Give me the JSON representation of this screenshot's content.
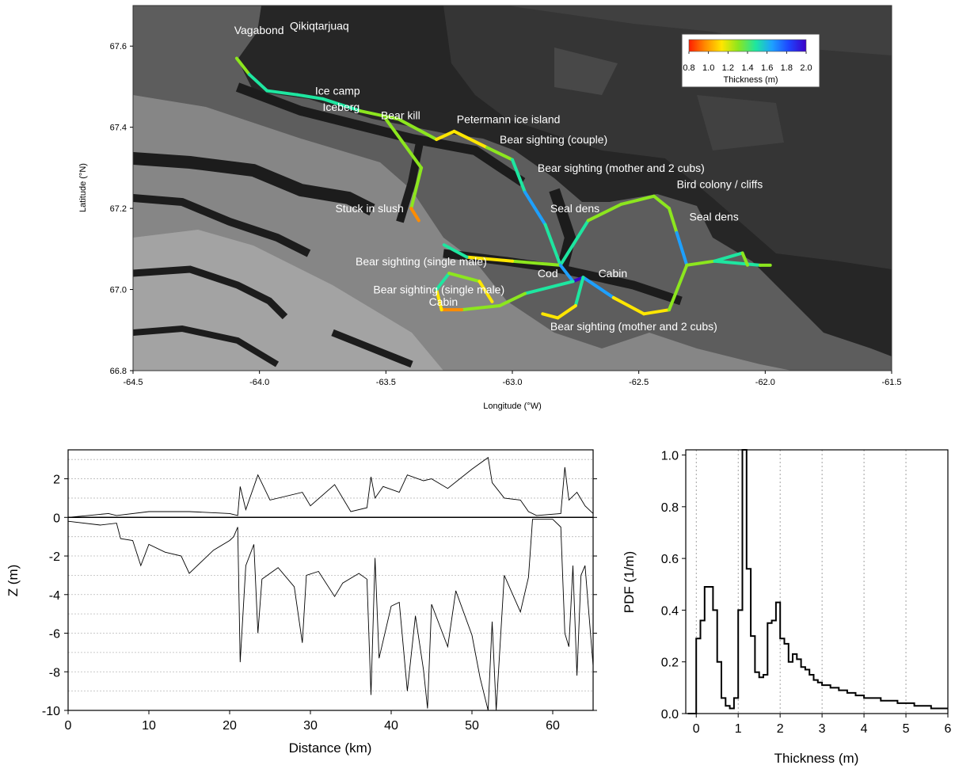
{
  "chart_data": [
    {
      "type": "scatter",
      "xlabel": "Longitude (°W)",
      "ylabel": "Latitude (°N)",
      "xlim": [
        -64.5,
        -61.5
      ],
      "ylim": [
        66.8,
        67.7
      ],
      "x_ticks": [
        "-64.5",
        "-64.0",
        "-63.5",
        "-63.0",
        "-62.5",
        "-62.0",
        "-61.5"
      ],
      "y_ticks": [
        "66.8",
        "67.0",
        "67.2",
        "67.4",
        "67.6"
      ],
      "background": "grayscale satellite radar image of coastline and sea ice",
      "colorbar": {
        "label": "Thickness (m)",
        "ticks": [
          "0.8",
          "1.0",
          "1.2",
          "1.4",
          "1.6",
          "1.8",
          "2.0"
        ],
        "range": [
          0.8,
          2.0
        ],
        "colors": [
          "#ff1e00",
          "#ff8c00",
          "#ffe600",
          "#8ce61e",
          "#1ee6a0",
          "#1ea0ff",
          "#1e46ff",
          "#3c00c8"
        ]
      },
      "annotations": [
        {
          "text": "Vagabond",
          "x": -64.1,
          "y": 67.63
        },
        {
          "text": "Qikiqtarjuaq",
          "x": -63.88,
          "y": 67.64
        },
        {
          "text": "Ice camp",
          "x": -63.78,
          "y": 67.48
        },
        {
          "text": "Iceberg",
          "x": -63.75,
          "y": 67.44
        },
        {
          "text": "Bear kill",
          "x": -63.52,
          "y": 67.42
        },
        {
          "text": "Petermann ice island",
          "x": -63.22,
          "y": 67.41
        },
        {
          "text": "Bear sighting (couple)",
          "x": -63.05,
          "y": 67.36
        },
        {
          "text": "Bear sighting (mother and 2 cubs)",
          "x": -62.9,
          "y": 67.29
        },
        {
          "text": "Bird colony / cliffs",
          "x": -62.35,
          "y": 67.25
        },
        {
          "text": "Seal dens",
          "x": -62.85,
          "y": 67.19
        },
        {
          "text": "Seal dens",
          "x": -62.3,
          "y": 67.17
        },
        {
          "text": "Stuck in slush",
          "x": -63.7,
          "y": 67.19
        },
        {
          "text": "Bear sighting (single male)",
          "x": -63.62,
          "y": 67.06
        },
        {
          "text": "Bear sighting (single male)",
          "x": -63.55,
          "y": 66.99
        },
        {
          "text": "Cod",
          "x": -62.9,
          "y": 67.03
        },
        {
          "text": "Cabin",
          "x": -62.66,
          "y": 67.03
        },
        {
          "text": "Cabin",
          "x": -63.33,
          "y": 66.96
        },
        {
          "text": "Bear sighting (mother and 2 cubs)",
          "x": -62.85,
          "y": 66.9
        }
      ],
      "track": [
        {
          "lon": -64.09,
          "lat": 67.57,
          "t": 1.3
        },
        {
          "lon": -64.04,
          "lat": 67.53,
          "t": 1.4
        },
        {
          "lon": -63.97,
          "lat": 67.49,
          "t": 1.5
        },
        {
          "lon": -63.85,
          "lat": 67.48,
          "t": 1.5
        },
        {
          "lon": -63.75,
          "lat": 67.47,
          "t": 1.6
        },
        {
          "lon": -63.6,
          "lat": 67.44,
          "t": 1.3
        },
        {
          "lon": -63.45,
          "lat": 67.42,
          "t": 1.5
        },
        {
          "lon": -63.3,
          "lat": 67.37,
          "t": 1.2
        },
        {
          "lon": -63.23,
          "lat": 67.39,
          "t": 1.1
        },
        {
          "lon": -63.1,
          "lat": 67.35,
          "t": 1.3
        },
        {
          "lon": -63.0,
          "lat": 67.32,
          "t": 1.4
        },
        {
          "lon": -62.95,
          "lat": 67.24,
          "t": 1.7
        },
        {
          "lon": -62.87,
          "lat": 67.16,
          "t": 1.6
        },
        {
          "lon": -62.81,
          "lat": 67.06,
          "t": 1.5
        },
        {
          "lon": -62.7,
          "lat": 67.17,
          "t": 1.4
        },
        {
          "lon": -62.57,
          "lat": 67.21,
          "t": 1.3
        },
        {
          "lon": -62.44,
          "lat": 67.23,
          "t": 1.5
        },
        {
          "lon": -62.38,
          "lat": 67.2,
          "t": 1.0
        },
        {
          "lon": -62.35,
          "lat": 67.14,
          "t": 1.8
        },
        {
          "lon": -62.31,
          "lat": 67.06,
          "t": 1.4
        },
        {
          "lon": -62.2,
          "lat": 67.07,
          "t": 1.3
        },
        {
          "lon": -62.02,
          "lat": 67.06,
          "t": 1.6
        },
        {
          "lon": -61.98,
          "lat": 67.06,
          "t": 0.9
        }
      ],
      "track_branches": [
        [
          {
            "lon": -63.5,
            "lat": 67.42,
            "t": 1.3
          },
          {
            "lon": -63.36,
            "lat": 67.3,
            "t": 1.3
          },
          {
            "lon": -63.4,
            "lat": 67.2,
            "t": 1.2
          },
          {
            "lon": -63.37,
            "lat": 67.17,
            "t": 0.9
          }
        ],
        [
          {
            "lon": -62.81,
            "lat": 67.06,
            "t": 1.5
          },
          {
            "lon": -63.0,
            "lat": 67.07,
            "t": 1.3
          },
          {
            "lon": -63.18,
            "lat": 67.08,
            "t": 1.1
          },
          {
            "lon": -63.27,
            "lat": 67.11,
            "t": 1.8
          }
        ],
        [
          {
            "lon": -62.81,
            "lat": 67.06,
            "t": 1.5
          },
          {
            "lon": -62.76,
            "lat": 67.02,
            "t": 1.9
          },
          {
            "lon": -62.72,
            "lat": 67.03,
            "t": 2.0
          },
          {
            "lon": -62.6,
            "lat": 66.98,
            "t": 1.4
          },
          {
            "lon": -62.48,
            "lat": 66.94,
            "t": 1.0
          },
          {
            "lon": -62.38,
            "lat": 66.95,
            "t": 1.3
          },
          {
            "lon": -62.31,
            "lat": 67.06,
            "t": 1.4
          }
        ],
        [
          {
            "lon": -62.76,
            "lat": 67.02,
            "t": 1.6
          },
          {
            "lon": -62.95,
            "lat": 66.99,
            "t": 1.5
          },
          {
            "lon": -63.05,
            "lat": 66.96,
            "t": 1.3
          },
          {
            "lon": -63.2,
            "lat": 66.95,
            "t": 1.2
          },
          {
            "lon": -63.28,
            "lat": 66.95,
            "t": 0.9
          },
          {
            "lon": -63.3,
            "lat": 67.0,
            "t": 1.4
          },
          {
            "lon": -63.25,
            "lat": 67.04,
            "t": 1.5
          },
          {
            "lon": -63.13,
            "lat": 67.02,
            "t": 1.0
          },
          {
            "lon": -63.08,
            "lat": 66.97,
            "t": 1.2
          }
        ],
        [
          {
            "lon": -62.72,
            "lat": 67.03,
            "t": 1.6
          },
          {
            "lon": -62.75,
            "lat": 66.96,
            "t": 1.3
          },
          {
            "lon": -62.82,
            "lat": 66.93,
            "t": 0.9
          },
          {
            "lon": -62.88,
            "lat": 66.94,
            "t": 1.4
          }
        ],
        [
          {
            "lon": -62.2,
            "lat": 67.07,
            "t": 1.4
          },
          {
            "lon": -62.09,
            "lat": 67.09,
            "t": 1.5
          },
          {
            "lon": -62.07,
            "lat": 67.06,
            "t": 1.3
          }
        ]
      ]
    },
    {
      "type": "line",
      "xlabel": "Distance (km)",
      "ylabel": "Z (m)",
      "xlim": [
        0,
        65
      ],
      "ylim": [
        -10,
        3.5
      ],
      "x_ticks": [
        "0",
        "10",
        "20",
        "30",
        "40",
        "50",
        "60"
      ],
      "y_ticks": [
        "-10",
        "-8",
        "-6",
        "-4",
        "-2",
        "0",
        "2"
      ],
      "grid": "dotted horizontal",
      "series": [
        {
          "role": "surface",
          "x": [
            0,
            5,
            6,
            10,
            15,
            20,
            21,
            21.3,
            22,
            23.5,
            25,
            29,
            30,
            33,
            35,
            37,
            37.5,
            38,
            39,
            41,
            42,
            44,
            45,
            47,
            50,
            52,
            52.5,
            54,
            56,
            57,
            58,
            61,
            61.5,
            62,
            63,
            64,
            65
          ],
          "y": [
            0,
            0.2,
            0.1,
            0.3,
            0.3,
            0.2,
            0.1,
            1.6,
            0.4,
            2.2,
            0.9,
            1.3,
            0.6,
            1.7,
            0.3,
            0.5,
            2.1,
            1.0,
            1.6,
            1.3,
            2.2,
            1.9,
            2.0,
            1.5,
            2.5,
            3.1,
            1.8,
            1.0,
            0.9,
            0.3,
            0.1,
            0.2,
            2.6,
            0.9,
            1.3,
            0.6,
            0.2
          ]
        },
        {
          "role": "bottom",
          "x": [
            0,
            4,
            6,
            6.5,
            8,
            9,
            10,
            12,
            14,
            15,
            18,
            20,
            20.5,
            21,
            21.3,
            22,
            23,
            23.5,
            24,
            26,
            28,
            29,
            29.5,
            31,
            33,
            34,
            36,
            37,
            37.5,
            38,
            38.5,
            40,
            41,
            42,
            43,
            44,
            44.5,
            45,
            47,
            48,
            50,
            51,
            52,
            52.5,
            53,
            54,
            56,
            57,
            57.5,
            60,
            61,
            61.5,
            62,
            62.5,
            63,
            63.5,
            64,
            65
          ],
          "y": [
            -0.2,
            -0.4,
            -0.3,
            -1.1,
            -1.2,
            -2.5,
            -1.4,
            -1.8,
            -2.0,
            -2.9,
            -1.7,
            -1.2,
            -1.0,
            -0.5,
            -7.5,
            -2.5,
            -1.4,
            -6.0,
            -3.2,
            -2.6,
            -3.6,
            -6.5,
            -3.0,
            -2.8,
            -4.1,
            -3.4,
            -2.9,
            -3.2,
            -9.2,
            -2.1,
            -7.3,
            -4.6,
            -4.4,
            -9.0,
            -5.1,
            -7.9,
            -9.9,
            -4.5,
            -6.7,
            -3.8,
            -6.1,
            -8.3,
            -10.0,
            -5.4,
            -10.0,
            -3.0,
            -4.9,
            -3.1,
            -0.1,
            -0.1,
            -0.5,
            -6.0,
            -6.7,
            -2.5,
            -8.2,
            -3.0,
            -2.5,
            -7.7
          ]
        }
      ]
    },
    {
      "type": "line",
      "xlabel": "Thickness (m)",
      "ylabel": "PDF (1/m)",
      "xlim": [
        -0.25,
        6
      ],
      "ylim": [
        0,
        1.02
      ],
      "x_ticks": [
        "0",
        "1",
        "2",
        "3",
        "4",
        "5",
        "6"
      ],
      "y_ticks": [
        "0.0",
        "0.2",
        "0.4",
        "0.6",
        "0.8",
        "1.0"
      ],
      "grid": "dotted vertical",
      "step_edges": [
        -0.2,
        0.0,
        0.1,
        0.2,
        0.4,
        0.5,
        0.6,
        0.7,
        0.8,
        0.9,
        1.0,
        1.1,
        1.2,
        1.3,
        1.4,
        1.5,
        1.6,
        1.7,
        1.8,
        1.9,
        2.0,
        2.1,
        2.2,
        2.3,
        2.4,
        2.5,
        2.6,
        2.7,
        2.8,
        2.9,
        3.0,
        3.2,
        3.4,
        3.6,
        3.8,
        4.0,
        4.2,
        4.4,
        4.6,
        4.8,
        5.0,
        5.2,
        5.4,
        5.6,
        5.8,
        6.0
      ],
      "values": [
        0.0,
        0.29,
        0.36,
        0.49,
        0.4,
        0.2,
        0.06,
        0.03,
        0.02,
        0.06,
        0.4,
        1.02,
        0.56,
        0.3,
        0.16,
        0.14,
        0.15,
        0.35,
        0.36,
        0.43,
        0.29,
        0.27,
        0.2,
        0.23,
        0.21,
        0.18,
        0.17,
        0.15,
        0.13,
        0.12,
        0.11,
        0.1,
        0.09,
        0.08,
        0.07,
        0.06,
        0.06,
        0.05,
        0.05,
        0.04,
        0.04,
        0.03,
        0.03,
        0.02,
        0.02
      ]
    }
  ]
}
